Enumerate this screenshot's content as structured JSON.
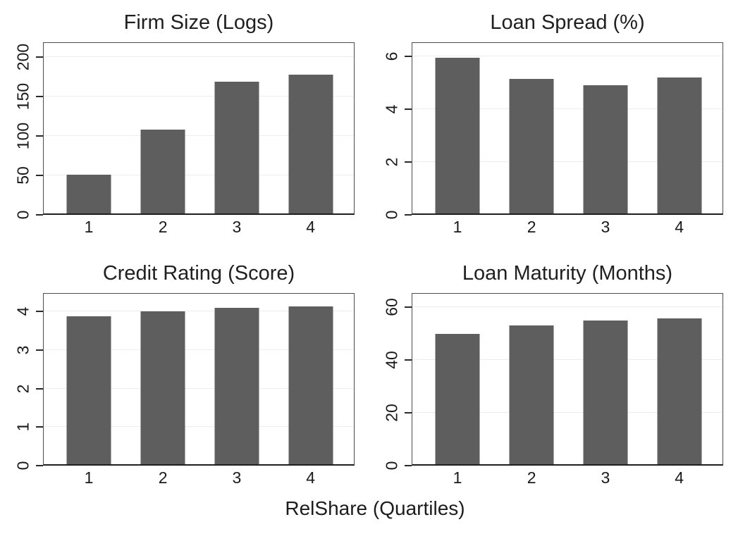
{
  "figure": {
    "xlabel": "RelShare (Quartiles)"
  },
  "style": {
    "background": "#ffffff",
    "bar_color": "#5e5e5e",
    "grid_color": "#ededed",
    "border_color": "#4d4d4d",
    "axis_color": "#1f1f1f",
    "text_color": "#1a1a1a"
  },
  "chart_data": [
    {
      "type": "bar",
      "title": "Firm Size (Logs)",
      "categories": [
        "1",
        "2",
        "3",
        "4"
      ],
      "values": [
        51,
        108,
        169,
        178
      ],
      "yticks": [
        0,
        50,
        100,
        150,
        200
      ],
      "ylim": [
        0,
        218.75
      ],
      "xlabel": "RelShare (Quartiles)",
      "ylabel": "",
      "grid": "horizontal",
      "legend": "none"
    },
    {
      "type": "bar",
      "title": "Loan Spread (%)",
      "categories": [
        "1",
        "2",
        "3",
        "4"
      ],
      "values": [
        5.95,
        5.15,
        4.9,
        5.2
      ],
      "yticks": [
        0,
        2,
        4,
        6
      ],
      "ylim": [
        0,
        6.53
      ],
      "xlabel": "RelShare (Quartiles)",
      "ylabel": "",
      "grid": "horizontal",
      "legend": "none"
    },
    {
      "type": "bar",
      "title": "Credit Rating (Score)",
      "categories": [
        "1",
        "2",
        "3",
        "4"
      ],
      "values": [
        3.87,
        4.0,
        4.1,
        4.14
      ],
      "yticks": [
        0,
        1,
        2,
        3,
        4
      ],
      "ylim": [
        0,
        4.48
      ],
      "xlabel": "RelShare (Quartiles)",
      "ylabel": "",
      "grid": "horizontal",
      "legend": "none"
    },
    {
      "type": "bar",
      "title": "Loan Maturity (Months)",
      "categories": [
        "1",
        "2",
        "3",
        "4"
      ],
      "values": [
        50,
        53,
        55,
        55.7
      ],
      "yticks": [
        0,
        20,
        40,
        60
      ],
      "ylim": [
        0,
        65.33
      ],
      "xlabel": "RelShare (Quartiles)",
      "ylabel": "",
      "grid": "horizontal",
      "legend": "none"
    }
  ]
}
